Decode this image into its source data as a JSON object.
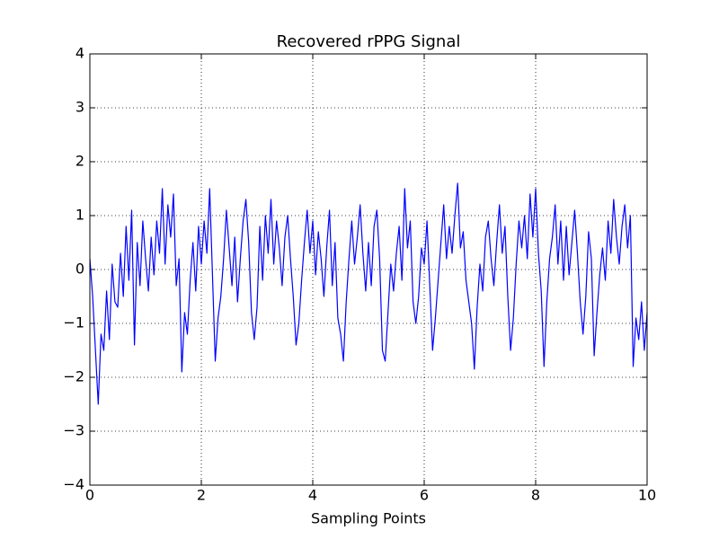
{
  "chart_data": {
    "type": "line",
    "title": "Recovered rPPG Signal",
    "xlabel": "Sampling Points",
    "xlim": [
      0,
      10
    ],
    "xticks": [
      0,
      2,
      4,
      6,
      8,
      10
    ],
    "ylim": [
      -4,
      4
    ],
    "yticks": [
      {
        "value": -4,
        "label": "−4"
      },
      {
        "value": -3,
        "label": "−3"
      },
      {
        "value": -2,
        "label": "−2"
      },
      {
        "value": -1,
        "label": "−1"
      },
      0,
      1,
      2,
      3,
      4
    ],
    "grid": true,
    "x": [
      0,
      0.05,
      0.1,
      0.15,
      0.2,
      0.25,
      0.3,
      0.35,
      0.4,
      0.45,
      0.5,
      0.55,
      0.6,
      0.65,
      0.7,
      0.75,
      0.8,
      0.85,
      0.9,
      0.95,
      1,
      1.05,
      1.1,
      1.15,
      1.2,
      1.25,
      1.3,
      1.35,
      1.4,
      1.45,
      1.5,
      1.55,
      1.6,
      1.65,
      1.7,
      1.75,
      1.8,
      1.85,
      1.9,
      1.95,
      2,
      2.05,
      2.1,
      2.15,
      2.2,
      2.25,
      2.3,
      2.35,
      2.4,
      2.45,
      2.5,
      2.55,
      2.6,
      2.65,
      2.7,
      2.75,
      2.8,
      2.85,
      2.9,
      2.95,
      3,
      3.05,
      3.1,
      3.15,
      3.2,
      3.25,
      3.3,
      3.35,
      3.4,
      3.45,
      3.5,
      3.55,
      3.6,
      3.65,
      3.7,
      3.75,
      3.8,
      3.85,
      3.9,
      3.95,
      4,
      4.05,
      4.1,
      4.15,
      4.2,
      4.25,
      4.3,
      4.35,
      4.4,
      4.45,
      4.5,
      4.55,
      4.6,
      4.65,
      4.7,
      4.75,
      4.8,
      4.85,
      4.9,
      4.95,
      5,
      5.05,
      5.1,
      5.15,
      5.2,
      5.25,
      5.3,
      5.35,
      5.4,
      5.45,
      5.5,
      5.55,
      5.6,
      5.65,
      5.7,
      5.75,
      5.8,
      5.85,
      5.9,
      5.95,
      6,
      6.05,
      6.1,
      6.15,
      6.2,
      6.25,
      6.3,
      6.35,
      6.4,
      6.45,
      6.5,
      6.55,
      6.6,
      6.65,
      6.7,
      6.75,
      6.8,
      6.85,
      6.9,
      6.95,
      7,
      7.05,
      7.1,
      7.15,
      7.2,
      7.25,
      7.3,
      7.35,
      7.4,
      7.45,
      7.5,
      7.55,
      7.6,
      7.65,
      7.7,
      7.75,
      7.8,
      7.85,
      7.9,
      7.95,
      8,
      8.05,
      8.1,
      8.15,
      8.2,
      8.25,
      8.3,
      8.35,
      8.4,
      8.45,
      8.5,
      8.55,
      8.6,
      8.65,
      8.7,
      8.75,
      8.8,
      8.85,
      8.9,
      8.95,
      9,
      9.05,
      9.1,
      9.15,
      9.2,
      9.25,
      9.3,
      9.35,
      9.4,
      9.45,
      9.5,
      9.55,
      9.6,
      9.65,
      9.7,
      9.75,
      9.8,
      9.85,
      9.9,
      9.95,
      10
    ],
    "series": [
      {
        "color": "#0000ff",
        "values": [
          0.2,
          -0.5,
          -1.5,
          -2.5,
          -1.2,
          -1.5,
          -0.4,
          -1.3,
          0.1,
          -0.6,
          -0.7,
          0.3,
          -0.5,
          0.8,
          -0.2,
          1.1,
          -1.4,
          0.5,
          -0.3,
          0.9,
          0.2,
          -0.4,
          0.6,
          -0.1,
          0.9,
          0.3,
          1.5,
          0.1,
          1.2,
          0.6,
          1.4,
          -0.3,
          0.2,
          -1.9,
          -0.8,
          -1.2,
          -0.2,
          0.5,
          -0.4,
          0.8,
          0.1,
          0.9,
          0.3,
          1.5,
          -0.1,
          -1.7,
          -0.9,
          -0.5,
          0.2,
          1.1,
          0.4,
          -0.3,
          0.6,
          -0.6,
          0.2,
          0.9,
          1.3,
          0.5,
          -0.8,
          -1.3,
          -0.7,
          0.8,
          -0.2,
          1.0,
          0.3,
          1.3,
          0.1,
          0.9,
          0.4,
          -0.3,
          0.6,
          1.0,
          0.2,
          -0.5,
          -1.4,
          -1.0,
          -0.2,
          0.5,
          1.1,
          0.3,
          0.9,
          -0.1,
          0.7,
          0.2,
          -0.5,
          0.4,
          1.1,
          -0.3,
          0.5,
          -0.9,
          -1.2,
          -1.7,
          -0.6,
          0.2,
          0.9,
          0.1,
          0.6,
          1.2,
          0.3,
          -0.4,
          0.5,
          -0.3,
          0.8,
          1.1,
          0.2,
          -1.5,
          -1.7,
          -0.8,
          0.1,
          -0.4,
          0.3,
          0.8,
          -0.2,
          1.5,
          0.4,
          0.9,
          -0.6,
          -1.0,
          -0.5,
          0.4,
          0.1,
          0.9,
          -0.3,
          -1.5,
          -0.9,
          -0.2,
          0.5,
          1.2,
          0.2,
          0.8,
          0.3,
          1.0,
          1.6,
          0.4,
          0.7,
          -0.2,
          -0.6,
          -1.0,
          -1.85,
          -0.7,
          0.1,
          -0.4,
          0.6,
          0.9,
          0.2,
          -0.3,
          0.5,
          1.2,
          0.3,
          0.8,
          -0.5,
          -1.5,
          -0.9,
          0.1,
          0.9,
          0.4,
          1.0,
          0.2,
          1.4,
          0.6,
          1.5,
          0.3,
          -0.4,
          -1.8,
          -0.6,
          0.2,
          0.6,
          1.2,
          0.1,
          0.9,
          -0.2,
          0.8,
          -0.1,
          0.5,
          1.1,
          0.3,
          -0.6,
          -1.2,
          -0.5,
          0.7,
          0.2,
          -1.6,
          -0.8,
          -0.1,
          0.4,
          -0.2,
          0.9,
          0.3,
          1.3,
          0.6,
          0.1,
          0.8,
          1.2,
          0.4,
          1.0,
          -1.8,
          -0.9,
          -1.3,
          -0.6,
          -1.5,
          -0.8
        ]
      }
    ]
  }
}
